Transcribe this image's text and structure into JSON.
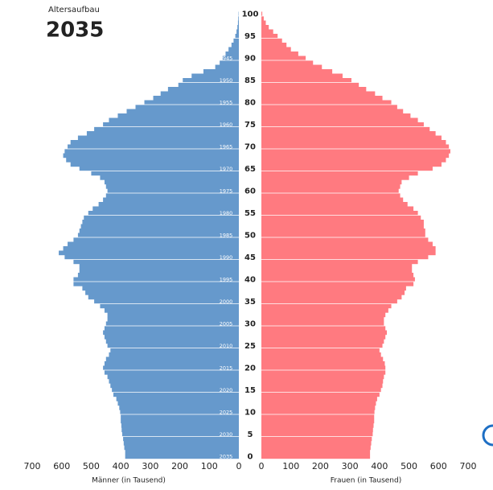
{
  "chart_data": {
    "type": "pyramid",
    "supertitle": "Altersaufbau",
    "title": "2035",
    "xlabel_left": "Männer (in Tausend)",
    "xlabel_right": "Frauen (in Tausend)",
    "categories": [
      0,
      1,
      2,
      3,
      4,
      5,
      6,
      7,
      8,
      9,
      10,
      11,
      12,
      13,
      14,
      15,
      16,
      17,
      18,
      19,
      20,
      21,
      22,
      23,
      24,
      25,
      26,
      27,
      28,
      29,
      30,
      31,
      32,
      33,
      34,
      35,
      36,
      37,
      38,
      39,
      40,
      41,
      42,
      43,
      44,
      45,
      46,
      47,
      48,
      49,
      50,
      51,
      52,
      53,
      54,
      55,
      56,
      57,
      58,
      59,
      60,
      61,
      62,
      63,
      64,
      65,
      66,
      67,
      68,
      69,
      70,
      71,
      72,
      73,
      74,
      75,
      76,
      77,
      78,
      79,
      80,
      81,
      82,
      83,
      84,
      85,
      86,
      87,
      88,
      89,
      90,
      91,
      92,
      93,
      94,
      95,
      96,
      97,
      98,
      99,
      100
    ],
    "series": [
      {
        "side": "left",
        "color": "#6699cc",
        "values": [
          385,
          385,
          388,
          390,
          392,
          395,
          397,
          398,
          400,
          400,
          402,
          405,
          410,
          415,
          425,
          430,
          435,
          440,
          445,
          455,
          460,
          455,
          450,
          440,
          435,
          445,
          450,
          455,
          460,
          455,
          450,
          445,
          445,
          455,
          470,
          490,
          510,
          520,
          530,
          560,
          560,
          545,
          540,
          540,
          560,
          590,
          610,
          595,
          580,
          560,
          545,
          540,
          535,
          530,
          525,
          510,
          495,
          475,
          460,
          450,
          445,
          450,
          455,
          470,
          500,
          540,
          570,
          585,
          595,
          590,
          580,
          570,
          545,
          515,
          490,
          460,
          440,
          410,
          380,
          350,
          320,
          290,
          265,
          240,
          205,
          190,
          160,
          120,
          80,
          65,
          55,
          45,
          35,
          25,
          18,
          12,
          8,
          5,
          3,
          2,
          1
        ]
      },
      {
        "side": "right",
        "color": "#ff7a80",
        "values": [
          368,
          368,
          370,
          372,
          374,
          377,
          378,
          380,
          382,
          382,
          383,
          385,
          388,
          392,
          400,
          405,
          410,
          412,
          415,
          420,
          420,
          418,
          412,
          405,
          400,
          410,
          415,
          420,
          425,
          420,
          415,
          415,
          420,
          430,
          440,
          460,
          475,
          485,
          490,
          515,
          520,
          515,
          510,
          510,
          530,
          565,
          590,
          590,
          580,
          565,
          555,
          555,
          550,
          550,
          540,
          530,
          515,
          495,
          480,
          470,
          465,
          470,
          475,
          500,
          530,
          580,
          610,
          625,
          635,
          640,
          635,
          625,
          610,
          590,
          570,
          550,
          530,
          505,
          480,
          460,
          440,
          410,
          385,
          355,
          330,
          305,
          275,
          240,
          205,
          175,
          150,
          125,
          100,
          85,
          70,
          55,
          40,
          25,
          15,
          8,
          3
        ]
      }
    ],
    "xlim": [
      0,
      700
    ],
    "xticks": [
      0,
      100,
      200,
      300,
      400,
      500,
      600,
      700
    ],
    "yticks": [
      0,
      5,
      10,
      15,
      20,
      25,
      30,
      35,
      40,
      45,
      50,
      55,
      60,
      65,
      70,
      75,
      80,
      85,
      90,
      95,
      100
    ],
    "birth_year_ticks": [
      {
        "value": 0,
        "label": "2035"
      },
      {
        "value": 5,
        "label": "2030"
      },
      {
        "value": 10,
        "label": "2025"
      },
      {
        "value": 15,
        "label": "2020"
      },
      {
        "value": 20,
        "label": "2015"
      },
      {
        "value": 25,
        "label": "2010"
      },
      {
        "value": 30,
        "label": "2005"
      },
      {
        "value": 35,
        "label": "2000"
      },
      {
        "value": 40,
        "label": "1995"
      },
      {
        "value": 45,
        "label": "1990"
      },
      {
        "value": 50,
        "label": "1985"
      },
      {
        "value": 55,
        "label": "1980"
      },
      {
        "value": 60,
        "label": "1975"
      },
      {
        "value": 65,
        "label": "1970"
      },
      {
        "value": 70,
        "label": "1965"
      },
      {
        "value": 75,
        "label": "1960"
      },
      {
        "value": 80,
        "label": "1955"
      },
      {
        "value": 85,
        "label": "1950"
      },
      {
        "value": 90,
        "label": "1945"
      }
    ]
  }
}
